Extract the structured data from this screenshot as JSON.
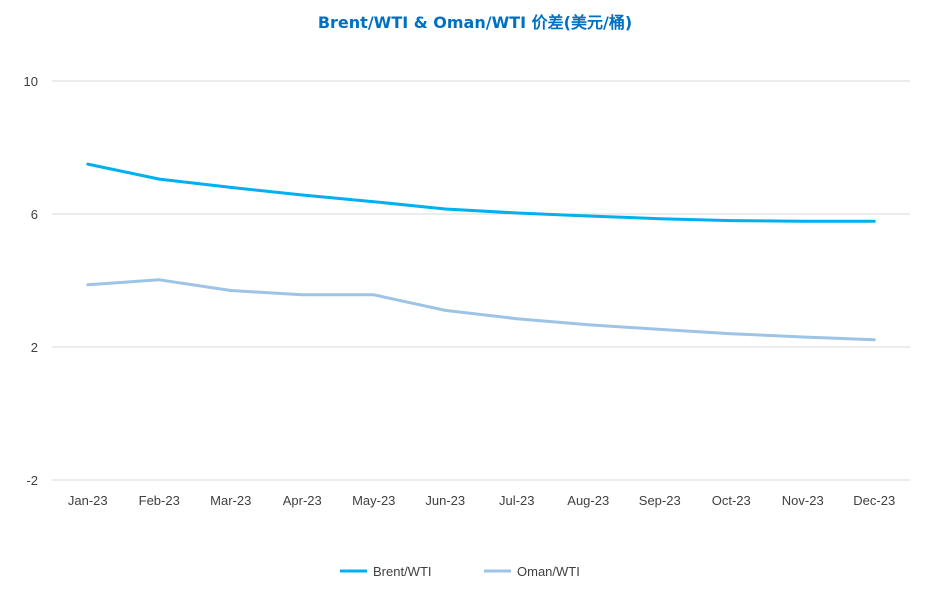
{
  "chart_data": {
    "type": "line",
    "title": "Brent/WTI & Oman/WTI 价差(美元/桶)",
    "categories": [
      "Jan-23",
      "Feb-23",
      "Mar-23",
      "Apr-23",
      "May-23",
      "Jun-23",
      "Jul-23",
      "Aug-23",
      "Sep-23",
      "Oct-23",
      "Nov-23",
      "Dec-23"
    ],
    "ylim": [
      -2,
      10
    ],
    "yticks": [
      {
        "value": -2,
        "label": "-2"
      },
      {
        "value": 2,
        "label": "2"
      },
      {
        "value": 6,
        "label": "6"
      },
      {
        "value": 10,
        "label": "10"
      }
    ],
    "grid": true,
    "legend_position": "bottom",
    "series": [
      {
        "name": "Brent/WTI",
        "color": "#00b0f0",
        "values": [
          7.5,
          7.05,
          6.8,
          6.57,
          6.37,
          6.15,
          6.03,
          5.94,
          5.86,
          5.8,
          5.78,
          5.78
        ]
      },
      {
        "name": "Oman/WTI",
        "color": "#9dc3e6",
        "values": [
          3.87,
          4.02,
          3.7,
          3.57,
          3.57,
          3.1,
          2.85,
          2.67,
          2.53,
          2.4,
          2.3,
          2.22
        ]
      }
    ],
    "colors": {
      "title": "#0070c0",
      "grid": "#d9d9d9",
      "axis_text": "#404040"
    }
  }
}
